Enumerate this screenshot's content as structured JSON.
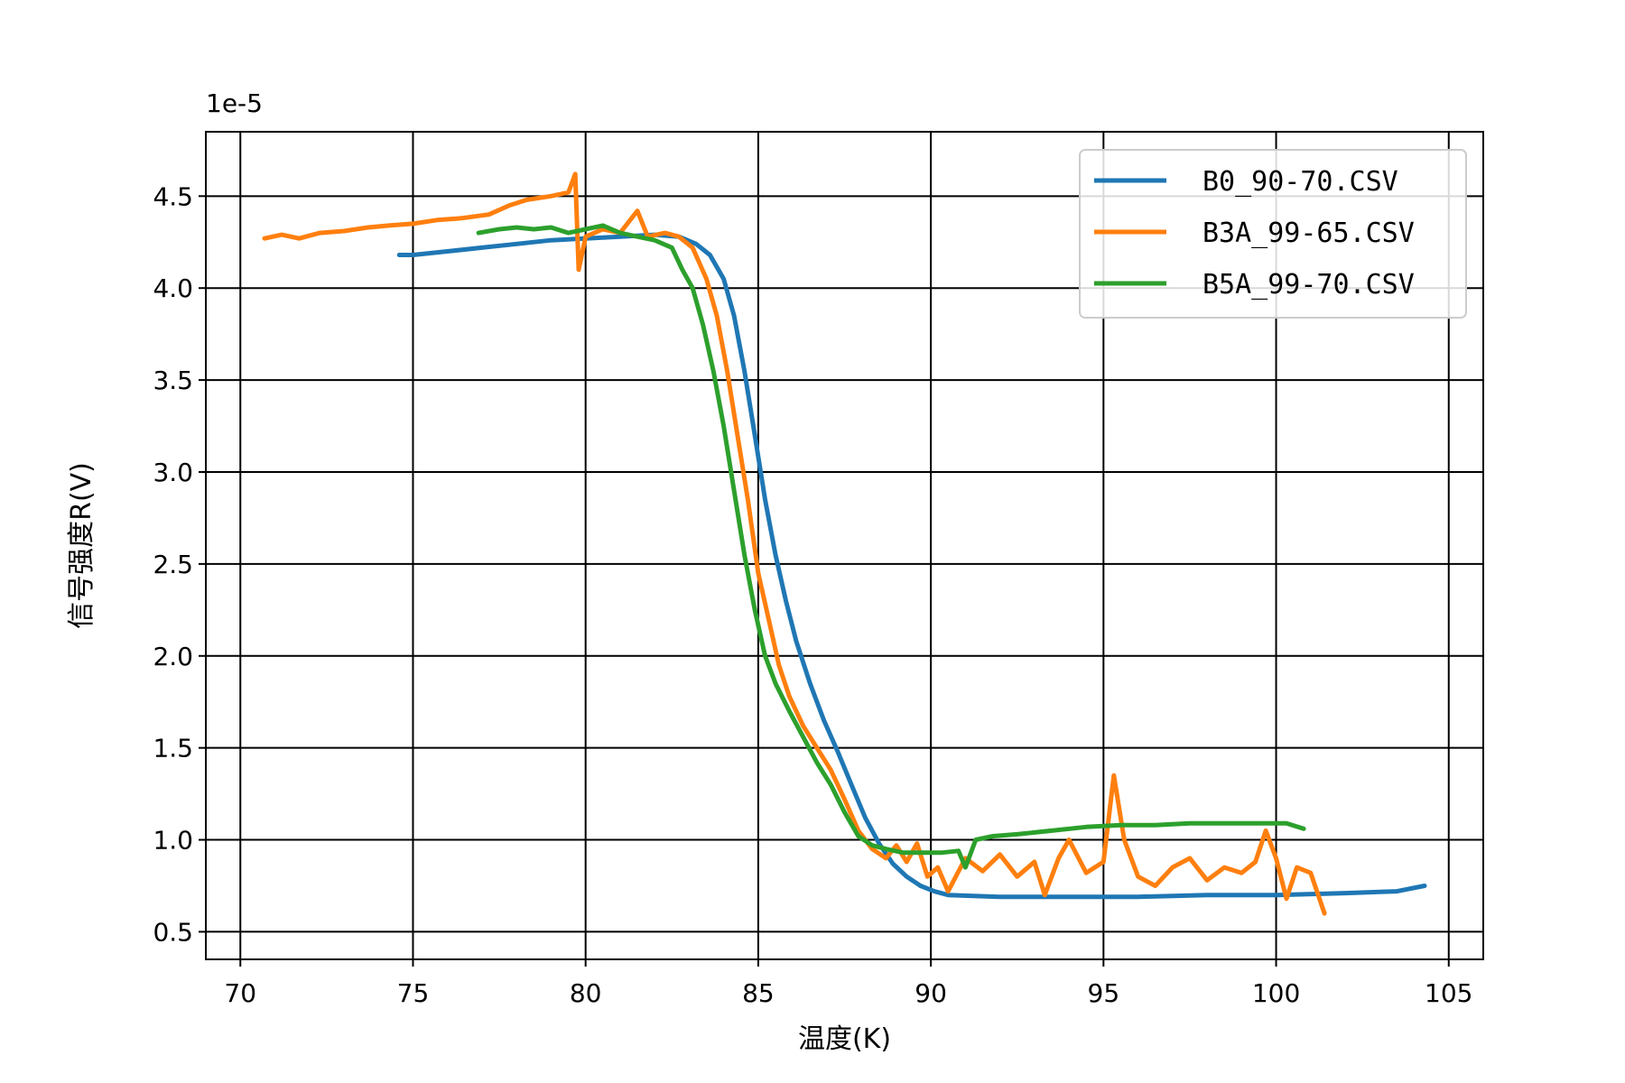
{
  "chart_data": {
    "type": "line",
    "xlabel": "温度(K)",
    "ylabel": "信号强度R(V)",
    "y_offset_label": "1e-5",
    "xlim": [
      69,
      106
    ],
    "ylim": [
      0.35,
      4.85
    ],
    "y_scale_note": "values ×1e-5 V",
    "xticks": [
      70,
      75,
      80,
      85,
      90,
      95,
      100,
      105
    ],
    "yticks": [
      0.5,
      1.0,
      1.5,
      2.0,
      2.5,
      3.0,
      3.5,
      4.0,
      4.5
    ],
    "xtick_labels": [
      "70",
      "75",
      "80",
      "85",
      "90",
      "95",
      "100",
      "105"
    ],
    "ytick_labels": [
      "0.5",
      "1.0",
      "1.5",
      "2.0",
      "2.5",
      "3.0",
      "3.5",
      "4.0",
      "4.5"
    ],
    "grid": true,
    "legend_position": "top-right",
    "series": [
      {
        "name": "B0_90-70.CSV",
        "color": "#1f77b4",
        "points": [
          [
            74.6,
            4.18
          ],
          [
            75,
            4.18
          ],
          [
            76,
            4.2
          ],
          [
            77,
            4.22
          ],
          [
            78,
            4.24
          ],
          [
            79,
            4.26
          ],
          [
            80,
            4.27
          ],
          [
            81,
            4.28
          ],
          [
            82,
            4.29
          ],
          [
            82.7,
            4.28
          ],
          [
            83.2,
            4.24
          ],
          [
            83.6,
            4.18
          ],
          [
            84,
            4.05
          ],
          [
            84.3,
            3.85
          ],
          [
            84.6,
            3.55
          ],
          [
            84.9,
            3.2
          ],
          [
            85.2,
            2.85
          ],
          [
            85.5,
            2.55
          ],
          [
            85.8,
            2.3
          ],
          [
            86.1,
            2.08
          ],
          [
            86.5,
            1.85
          ],
          [
            86.9,
            1.65
          ],
          [
            87.3,
            1.48
          ],
          [
            87.7,
            1.3
          ],
          [
            88.1,
            1.12
          ],
          [
            88.5,
            0.98
          ],
          [
            88.9,
            0.87
          ],
          [
            89.3,
            0.8
          ],
          [
            89.7,
            0.75
          ],
          [
            90.1,
            0.72
          ],
          [
            90.5,
            0.7
          ],
          [
            92,
            0.69
          ],
          [
            94,
            0.69
          ],
          [
            96,
            0.69
          ],
          [
            98,
            0.7
          ],
          [
            100,
            0.7
          ],
          [
            102,
            0.71
          ],
          [
            103.5,
            0.72
          ],
          [
            104.3,
            0.75
          ]
        ]
      },
      {
        "name": "B3A_99-65.CSV",
        "color": "#ff7f0e",
        "points": [
          [
            70.7,
            4.27
          ],
          [
            71.2,
            4.29
          ],
          [
            71.7,
            4.27
          ],
          [
            72.3,
            4.3
          ],
          [
            73,
            4.31
          ],
          [
            73.7,
            4.33
          ],
          [
            74.3,
            4.34
          ],
          [
            75,
            4.35
          ],
          [
            75.7,
            4.37
          ],
          [
            76.4,
            4.38
          ],
          [
            77.2,
            4.4
          ],
          [
            77.8,
            4.45
          ],
          [
            78.3,
            4.48
          ],
          [
            79,
            4.5
          ],
          [
            79.5,
            4.52
          ],
          [
            79.7,
            4.62
          ],
          [
            79.8,
            4.1
          ],
          [
            80,
            4.28
          ],
          [
            80.5,
            4.32
          ],
          [
            81,
            4.3
          ],
          [
            81.5,
            4.42
          ],
          [
            81.8,
            4.28
          ],
          [
            82.3,
            4.3
          ],
          [
            82.7,
            4.28
          ],
          [
            83.1,
            4.22
          ],
          [
            83.5,
            4.05
          ],
          [
            83.8,
            3.85
          ],
          [
            84.1,
            3.55
          ],
          [
            84.4,
            3.2
          ],
          [
            84.7,
            2.85
          ],
          [
            85,
            2.45
          ],
          [
            85.3,
            2.2
          ],
          [
            85.6,
            1.95
          ],
          [
            85.9,
            1.78
          ],
          [
            86.3,
            1.62
          ],
          [
            86.7,
            1.5
          ],
          [
            87.1,
            1.38
          ],
          [
            87.5,
            1.22
          ],
          [
            87.9,
            1.05
          ],
          [
            88.3,
            0.95
          ],
          [
            88.7,
            0.9
          ],
          [
            89,
            0.97
          ],
          [
            89.3,
            0.88
          ],
          [
            89.6,
            0.98
          ],
          [
            89.9,
            0.8
          ],
          [
            90.2,
            0.85
          ],
          [
            90.5,
            0.72
          ],
          [
            91,
            0.9
          ],
          [
            91.5,
            0.83
          ],
          [
            92,
            0.92
          ],
          [
            92.5,
            0.8
          ],
          [
            93,
            0.88
          ],
          [
            93.3,
            0.7
          ],
          [
            93.7,
            0.9
          ],
          [
            94,
            1.0
          ],
          [
            94.5,
            0.82
          ],
          [
            95,
            0.88
          ],
          [
            95.3,
            1.35
          ],
          [
            95.6,
            1.0
          ],
          [
            96,
            0.8
          ],
          [
            96.5,
            0.75
          ],
          [
            97,
            0.85
          ],
          [
            97.5,
            0.9
          ],
          [
            98,
            0.78
          ],
          [
            98.5,
            0.85
          ],
          [
            99,
            0.82
          ],
          [
            99.4,
            0.88
          ],
          [
            99.7,
            1.05
          ],
          [
            100,
            0.9
          ],
          [
            100.3,
            0.68
          ],
          [
            100.6,
            0.85
          ],
          [
            101,
            0.82
          ],
          [
            101.4,
            0.6
          ]
        ]
      },
      {
        "name": "B5A_99-70.CSV",
        "color": "#2ca02c",
        "points": [
          [
            76.9,
            4.3
          ],
          [
            77.5,
            4.32
          ],
          [
            78,
            4.33
          ],
          [
            78.5,
            4.32
          ],
          [
            79,
            4.33
          ],
          [
            79.5,
            4.3
          ],
          [
            80,
            4.32
          ],
          [
            80.5,
            4.34
          ],
          [
            81,
            4.3
          ],
          [
            81.5,
            4.28
          ],
          [
            82,
            4.26
          ],
          [
            82.5,
            4.22
          ],
          [
            82.8,
            4.1
          ],
          [
            83.1,
            4.0
          ],
          [
            83.4,
            3.8
          ],
          [
            83.7,
            3.55
          ],
          [
            84,
            3.25
          ],
          [
            84.3,
            2.9
          ],
          [
            84.6,
            2.55
          ],
          [
            84.9,
            2.25
          ],
          [
            85.2,
            2.0
          ],
          [
            85.5,
            1.85
          ],
          [
            85.9,
            1.7
          ],
          [
            86.3,
            1.56
          ],
          [
            86.7,
            1.42
          ],
          [
            87.1,
            1.3
          ],
          [
            87.5,
            1.15
          ],
          [
            87.9,
            1.02
          ],
          [
            88.3,
            0.97
          ],
          [
            88.7,
            0.95
          ],
          [
            89.2,
            0.93
          ],
          [
            89.8,
            0.93
          ],
          [
            90.3,
            0.93
          ],
          [
            90.8,
            0.94
          ],
          [
            91,
            0.85
          ],
          [
            91.3,
            1.0
          ],
          [
            91.8,
            1.02
          ],
          [
            92.5,
            1.03
          ],
          [
            93.5,
            1.05
          ],
          [
            94.5,
            1.07
          ],
          [
            95.5,
            1.08
          ],
          [
            96.5,
            1.08
          ],
          [
            97.5,
            1.09
          ],
          [
            98.5,
            1.09
          ],
          [
            99.5,
            1.09
          ],
          [
            100.3,
            1.09
          ],
          [
            100.8,
            1.06
          ]
        ]
      }
    ]
  }
}
